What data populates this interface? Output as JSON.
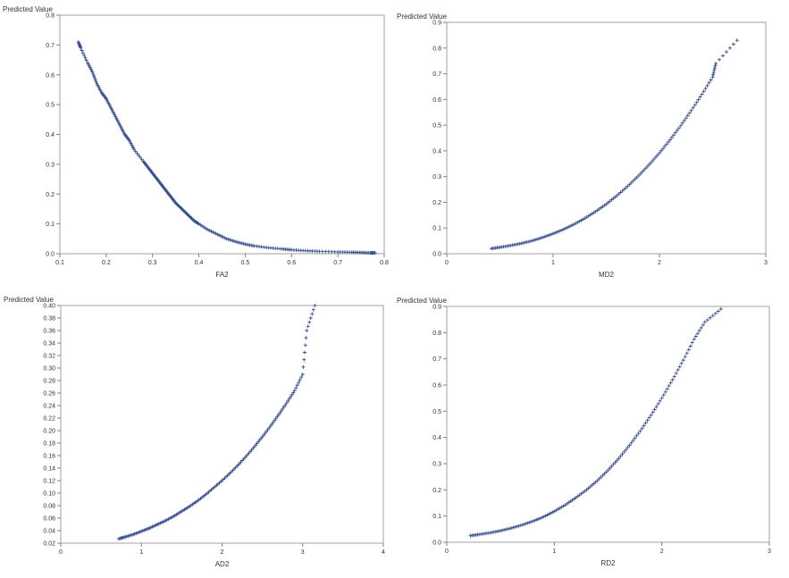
{
  "accent": "#3a4f8f",
  "chart_data": [
    {
      "type": "scatter",
      "ylabel": "Predicted Value",
      "xlabel": "FA2",
      "xlim": [
        0.1,
        0.8
      ],
      "ylim": [
        0.0,
        0.8
      ],
      "xticks": [
        "0.1",
        "0.2",
        "0.3",
        "0.4",
        "0.5",
        "0.6",
        "0.7",
        "0.8"
      ],
      "yticks": [
        "0.0",
        "0.1",
        "0.2",
        "0.3",
        "0.4",
        "0.5",
        "0.6",
        "0.7",
        "0.8"
      ],
      "grid": false,
      "marker": "plus",
      "points": {
        "x": [
          0.14,
          0.145,
          0.16,
          0.17,
          0.18,
          0.19,
          0.2,
          0.21,
          0.22,
          0.23,
          0.24,
          0.25,
          0.26,
          0.28,
          0.29,
          0.3,
          0.31,
          0.32,
          0.33,
          0.34,
          0.35,
          0.36,
          0.37,
          0.38,
          0.39,
          0.4,
          0.42,
          0.44,
          0.46,
          0.48,
          0.5,
          0.52,
          0.55,
          0.58,
          0.6,
          0.63,
          0.66,
          0.7,
          0.73,
          0.75,
          0.77,
          0.78
        ],
        "y": [
          0.71,
          0.69,
          0.64,
          0.61,
          0.57,
          0.54,
          0.52,
          0.49,
          0.46,
          0.43,
          0.4,
          0.38,
          0.35,
          0.31,
          0.29,
          0.27,
          0.25,
          0.23,
          0.21,
          0.19,
          0.17,
          0.155,
          0.14,
          0.125,
          0.11,
          0.1,
          0.08,
          0.065,
          0.05,
          0.04,
          0.032,
          0.026,
          0.02,
          0.016,
          0.013,
          0.01,
          0.008,
          0.006,
          0.005,
          0.004,
          0.003,
          0.003
        ]
      }
    },
    {
      "type": "scatter",
      "ylabel": "Predicted Value",
      "xlabel": "MD2",
      "xlim": [
        0,
        3
      ],
      "ylim": [
        0.0,
        0.9
      ],
      "xticks": [
        "0",
        "1",
        "2",
        "3"
      ],
      "yticks": [
        "0.0",
        "0.1",
        "0.2",
        "0.3",
        "0.4",
        "0.5",
        "0.6",
        "0.7",
        "0.8",
        "0.9"
      ],
      "grid": false,
      "marker": "plus",
      "points": {
        "x": [
          0.42,
          0.5,
          0.6,
          0.7,
          0.8,
          0.9,
          1.0,
          1.1,
          1.2,
          1.3,
          1.4,
          1.5,
          1.6,
          1.7,
          1.8,
          1.9,
          2.0,
          2.1,
          2.2,
          2.3,
          2.4,
          2.5,
          2.53,
          2.73
        ],
        "y": [
          0.02,
          0.025,
          0.032,
          0.04,
          0.05,
          0.063,
          0.078,
          0.095,
          0.115,
          0.138,
          0.164,
          0.193,
          0.226,
          0.262,
          0.302,
          0.345,
          0.392,
          0.443,
          0.498,
          0.557,
          0.62,
          0.687,
          0.74,
          0.83
        ]
      }
    },
    {
      "type": "scatter",
      "ylabel": "Predicted Value",
      "xlabel": "AD2",
      "xlim": [
        0,
        4
      ],
      "ylim": [
        0.02,
        0.4
      ],
      "xticks": [
        "0",
        "1",
        "2",
        "3",
        "4"
      ],
      "yticks": [
        "0.02",
        "0.04",
        "0.06",
        "0.08",
        "0.10",
        "0.12",
        "0.14",
        "0.16",
        "0.18",
        "0.20",
        "0.22",
        "0.24",
        "0.26",
        "0.28",
        "0.30",
        "0.32",
        "0.34",
        "0.36",
        "0.38",
        "0.40"
      ],
      "grid": false,
      "marker": "plus",
      "points": {
        "x": [
          0.72,
          0.8,
          0.9,
          1.0,
          1.1,
          1.2,
          1.3,
          1.4,
          1.5,
          1.6,
          1.7,
          1.8,
          1.9,
          2.0,
          2.1,
          2.2,
          2.3,
          2.4,
          2.5,
          2.6,
          2.7,
          2.8,
          2.9,
          3.0,
          3.05,
          3.15
        ],
        "y": [
          0.027,
          0.03,
          0.034,
          0.039,
          0.044,
          0.05,
          0.056,
          0.063,
          0.071,
          0.079,
          0.088,
          0.098,
          0.109,
          0.12,
          0.132,
          0.145,
          0.159,
          0.174,
          0.19,
          0.207,
          0.225,
          0.244,
          0.264,
          0.29,
          0.36,
          0.4
        ]
      }
    },
    {
      "type": "scatter",
      "ylabel": "Predicted Value",
      "xlabel": "RD2",
      "xlim": [
        0,
        3
      ],
      "ylim": [
        0.0,
        0.9
      ],
      "xticks": [
        "0",
        "1",
        "2",
        "3"
      ],
      "yticks": [
        "0.0",
        "0.1",
        "0.2",
        "0.3",
        "0.4",
        "0.5",
        "0.6",
        "0.7",
        "0.8",
        "0.9"
      ],
      "grid": false,
      "marker": "plus",
      "points": {
        "x": [
          0.22,
          0.3,
          0.4,
          0.5,
          0.6,
          0.7,
          0.8,
          0.9,
          1.0,
          1.1,
          1.2,
          1.3,
          1.4,
          1.5,
          1.6,
          1.7,
          1.8,
          1.9,
          2.0,
          2.1,
          2.2,
          2.3,
          2.4,
          2.55
        ],
        "y": [
          0.025,
          0.03,
          0.036,
          0.044,
          0.054,
          0.066,
          0.08,
          0.097,
          0.118,
          0.142,
          0.17,
          0.2,
          0.235,
          0.275,
          0.32,
          0.37,
          0.425,
          0.485,
          0.55,
          0.62,
          0.695,
          0.775,
          0.84,
          0.89
        ]
      }
    }
  ]
}
